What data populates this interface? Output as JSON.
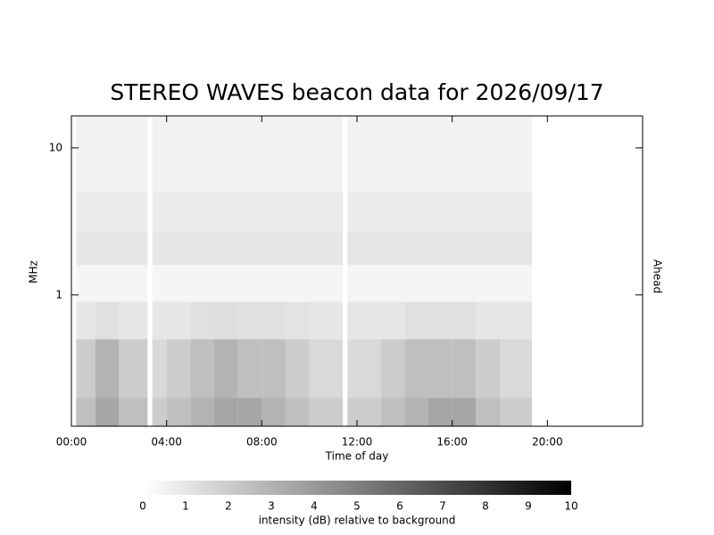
{
  "chart_data": {
    "type": "spectrogram",
    "title": "STEREO WAVES beacon data for 2026/09/17",
    "ylabel": "MHz",
    "right_label": "Ahead",
    "right_label_color": "#d00000",
    "xlabel": "Time of day",
    "xlim": [
      0,
      24
    ],
    "xticks": [
      {
        "value": 0,
        "label": "00:00"
      },
      {
        "value": 4,
        "label": "04:00"
      },
      {
        "value": 8,
        "label": "08:00"
      },
      {
        "value": 12,
        "label": "12:00"
      },
      {
        "value": 16,
        "label": "16:00"
      },
      {
        "value": 20,
        "label": "20:00"
      }
    ],
    "ylim": [
      0.128,
      16.5
    ],
    "log_y": true,
    "yticks": [
      1,
      10
    ],
    "time_edges": [
      0.2,
      1,
      2,
      3.2,
      3.4,
      4,
      5,
      6,
      7,
      8,
      9,
      10,
      11.4,
      11.6,
      12,
      13,
      14,
      15,
      16,
      17,
      18,
      19.35
    ],
    "freq_edges": [
      0.128,
      0.2,
      0.5,
      0.9,
      1.6,
      2.7,
      5,
      16.5
    ],
    "intensity": [
      [
        2.5,
        3.5,
        2.5,
        null,
        2,
        2.5,
        3,
        3.5,
        3.5,
        3,
        2.5,
        2,
        null,
        2,
        2,
        2.5,
        3,
        3.5,
        3.5,
        2.5,
        2
      ],
      [
        2,
        3,
        2,
        null,
        1.5,
        2,
        2.5,
        3,
        2.5,
        2.5,
        2,
        1.5,
        null,
        1.5,
        1.5,
        2,
        2.5,
        2.5,
        2.5,
        2,
        1.5
      ],
      [
        1,
        1.2,
        1,
        null,
        1,
        1,
        1.2,
        1.3,
        1.2,
        1.2,
        1.1,
        1,
        null,
        1,
        1,
        1,
        1.2,
        1.2,
        1.2,
        1,
        1
      ],
      [
        0.4,
        0.4,
        0.4,
        null,
        0.4,
        0.4,
        0.4,
        0.4,
        0.4,
        0.4,
        0.4,
        0.4,
        null,
        0.4,
        0.4,
        0.4,
        0.4,
        0.4,
        0.4,
        0.4,
        0.4
      ],
      [
        1,
        1,
        1,
        null,
        1,
        1,
        1,
        1,
        1,
        1,
        1,
        1,
        null,
        1,
        1,
        1,
        1,
        1,
        1,
        1,
        1
      ],
      [
        0.8,
        0.8,
        0.8,
        null,
        0.8,
        0.8,
        0.8,
        0.8,
        0.8,
        0.8,
        0.8,
        0.8,
        null,
        0.8,
        0.8,
        0.8,
        0.8,
        0.8,
        0.8,
        0.8,
        0.8
      ],
      [
        0.5,
        0.5,
        0.5,
        null,
        0.5,
        0.5,
        0.5,
        0.5,
        0.5,
        0.5,
        0.5,
        0.5,
        null,
        0.5,
        0.5,
        0.5,
        0.5,
        0.5,
        0.5,
        0.5,
        0.5
      ]
    ],
    "clim": [
      0,
      10
    ],
    "cticks": [
      0,
      1,
      2,
      3,
      4,
      5,
      6,
      7,
      8,
      9,
      10
    ],
    "clabel": "intensity (dB) relative to background"
  }
}
